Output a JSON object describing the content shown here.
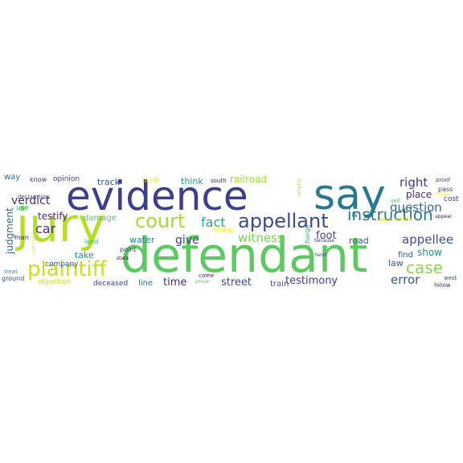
{
  "words": [
    {
      "text": "evidence",
      "color": "#3b3f8c"
    },
    {
      "text": "jury",
      "color": "#b5de2b"
    },
    {
      "text": "defendant",
      "color": "#5ec962"
    },
    {
      "text": "say",
      "color": "#2a788e"
    },
    {
      "text": "plaintiff",
      "color": "#c8e020"
    },
    {
      "text": "court",
      "color": "#a5db36"
    },
    {
      "text": "appellant",
      "color": "#3e4989"
    },
    {
      "text": "instruction",
      "color": "#2a768e"
    },
    {
      "text": "case",
      "color": "#8bd646"
    },
    {
      "text": "fact",
      "color": "#22a884"
    },
    {
      "text": "witness",
      "color": "#7ad151"
    },
    {
      "text": "question",
      "color": "#31688e"
    },
    {
      "text": "error",
      "color": "#38588c"
    },
    {
      "text": "appellee",
      "color": "#3b528b"
    },
    {
      "text": "right",
      "color": "#453781"
    },
    {
      "text": "verdict",
      "color": "#482878"
    },
    {
      "text": "car",
      "color": "#472c7a"
    },
    {
      "text": "testify",
      "color": "#472f7d"
    },
    {
      "text": "street",
      "color": "#3e4a89"
    },
    {
      "text": "testimony",
      "color": "#433e85"
    },
    {
      "text": "time",
      "color": "#46327e"
    },
    {
      "text": "give",
      "color": "#453882"
    },
    {
      "text": "foot",
      "color": "#3f4889"
    },
    {
      "text": "place",
      "color": "#482576"
    },
    {
      "text": "road",
      "color": "#3a548c"
    },
    {
      "text": "judgment",
      "color": "#2e6e8e"
    },
    {
      "text": "railroad",
      "color": "#9dd93b"
    },
    {
      "text": "water",
      "color": "#277f8e"
    },
    {
      "text": "take",
      "color": "#1f958b"
    },
    {
      "text": "show",
      "color": "#21918c"
    },
    {
      "text": "law",
      "color": "#39568c"
    },
    {
      "text": "find",
      "color": "#365c8d"
    },
    {
      "text": "train",
      "color": "#3d4e8a"
    },
    {
      "text": "line",
      "color": "#2c728e"
    },
    {
      "text": "think",
      "color": "#1fa188"
    },
    {
      "text": "track",
      "color": "#355f8d"
    },
    {
      "text": "damage",
      "color": "#55c667"
    },
    {
      "text": "deceased",
      "color": "#404688"
    },
    {
      "text": "way",
      "color": "#2d708e"
    },
    {
      "text": "opinion",
      "color": "#424186"
    },
    {
      "text": "know",
      "color": "#472d7b"
    },
    {
      "text": "charge",
      "color": "#35b779"
    },
    {
      "text": "company",
      "color": "#3b518b"
    },
    {
      "text": "objection",
      "color": "#cde11d"
    },
    {
      "text": "declaration",
      "color": "#3f4788"
    },
    {
      "text": "point",
      "color": "#414487"
    },
    {
      "text": "land",
      "color": "#2fb47c"
    },
    {
      "text": "state",
      "color": "#440154"
    },
    {
      "text": "north",
      "color": "#f1e51d"
    },
    {
      "text": "south",
      "color": "#471164"
    },
    {
      "text": "there",
      "color": "#fde725"
    },
    {
      "text": "run",
      "color": "#f8e621"
    },
    {
      "text": "proof",
      "color": "#404588"
    },
    {
      "text": "refuse",
      "color": "#fde725"
    },
    {
      "text": "pass",
      "color": "#424086"
    },
    {
      "text": "cost",
      "color": "#443a83"
    },
    {
      "text": "appear",
      "color": "#471365"
    },
    {
      "text": "tend",
      "color": "#443983"
    },
    {
      "text": "because",
      "color": "#463480"
    },
    {
      "text": "west",
      "color": "#3c4f8a"
    },
    {
      "text": "follow",
      "color": "#481f70"
    },
    {
      "text": "ground",
      "color": "#3d4d8a"
    },
    {
      "text": "treat",
      "color": "#1f9a8a"
    },
    {
      "text": "use",
      "color": "#20a486"
    },
    {
      "text": "man",
      "color": "#481a6c"
    },
    {
      "text": "come",
      "color": "#471063"
    },
    {
      "text": "prove",
      "color": "#52c569"
    },
    {
      "text": "sell",
      "color": "#4ac16d"
    },
    {
      "text": "employ",
      "color": "#c0df25"
    },
    {
      "text": "question_v",
      "color": "#dde318"
    },
    {
      "text": "&",
      "color": "#287c8e"
    },
    {
      "text": "authority",
      "color": "#fde725"
    }
  ]
}
